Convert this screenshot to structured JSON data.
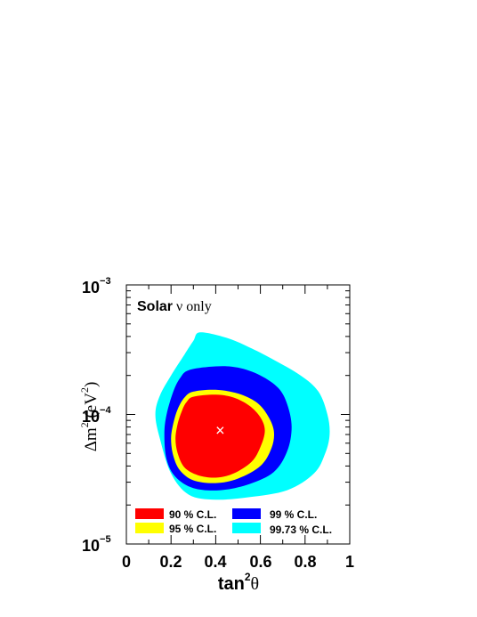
{
  "chart_data": {
    "type": "contour",
    "title": "",
    "annotation": {
      "bold": "Solar",
      "rest": "ν only"
    },
    "xlabel": {
      "base": "tan",
      "sup": "2",
      "tail": "θ"
    },
    "ylabel": {
      "pre": "Δm",
      "sup": "2",
      "mid": " (eV",
      "sup2": "2",
      "tail": ")"
    },
    "x_scale": "linear",
    "xlim": [
      0,
      1
    ],
    "x_ticks": [
      "0",
      "0.2",
      "0.4",
      "0.6",
      "0.8",
      "1"
    ],
    "y_scale": "log",
    "ylim": [
      1e-05,
      0.001
    ],
    "y_ticks": [
      {
        "base": "10",
        "exp": "−5"
      },
      {
        "base": "10",
        "exp": "−4"
      },
      {
        "base": "10",
        "exp": "−3"
      }
    ],
    "best_fit": {
      "x": 0.42,
      "y": 7.5e-05,
      "marker": "×"
    },
    "regions": [
      {
        "label": "99.73 % C.L.",
        "color": "#00ffff",
        "boundary": [
          [
            0.33,
            0.00043
          ],
          [
            0.45,
            0.00039
          ],
          [
            0.55,
            0.00033
          ],
          [
            0.65,
            0.00027
          ],
          [
            0.78,
            0.0002
          ],
          [
            0.86,
            0.00015
          ],
          [
            0.9,
            0.0001
          ],
          [
            0.91,
            7e-05
          ],
          [
            0.89,
            5e-05
          ],
          [
            0.84,
            3.5e-05
          ],
          [
            0.72,
            2.6e-05
          ],
          [
            0.55,
            2.3e-05
          ],
          [
            0.4,
            2.2e-05
          ],
          [
            0.28,
            2.4e-05
          ],
          [
            0.2,
            3.5e-05
          ],
          [
            0.15,
            6.5e-05
          ],
          [
            0.13,
            0.0001
          ],
          [
            0.15,
            0.00014
          ],
          [
            0.2,
            0.0002
          ],
          [
            0.26,
            0.00029
          ],
          [
            0.3,
            0.00037
          ]
        ]
      },
      {
        "label": "99 % C.L.",
        "color": "#0000ff",
        "boundary": [
          [
            0.28,
            0.00022
          ],
          [
            0.4,
            0.000235
          ],
          [
            0.5,
            0.00023
          ],
          [
            0.6,
            0.0002
          ],
          [
            0.68,
            0.00016
          ],
          [
            0.72,
            0.00012
          ],
          [
            0.74,
            8e-05
          ],
          [
            0.72,
            5.2e-05
          ],
          [
            0.66,
            3.6e-05
          ],
          [
            0.55,
            2.9e-05
          ],
          [
            0.42,
            2.6e-05
          ],
          [
            0.3,
            2.7e-05
          ],
          [
            0.22,
            3.3e-05
          ],
          [
            0.18,
            4.5e-05
          ],
          [
            0.17,
            7e-05
          ],
          [
            0.18,
            0.0001
          ],
          [
            0.21,
            0.00015
          ],
          [
            0.24,
            0.00019
          ]
        ]
      },
      {
        "label": "95 % C.L.",
        "color": "#ffff00",
        "boundary": [
          [
            0.3,
            0.00015
          ],
          [
            0.4,
            0.000155
          ],
          [
            0.5,
            0.000145
          ],
          [
            0.58,
            0.000125
          ],
          [
            0.63,
            0.0001
          ],
          [
            0.66,
            7.5e-05
          ],
          [
            0.65,
            5.5e-05
          ],
          [
            0.6,
            4e-05
          ],
          [
            0.5,
            3.2e-05
          ],
          [
            0.4,
            2.95e-05
          ],
          [
            0.3,
            3.1e-05
          ],
          [
            0.24,
            3.7e-05
          ],
          [
            0.21,
            4.8e-05
          ],
          [
            0.2,
            6.5e-05
          ],
          [
            0.21,
            8.5e-05
          ],
          [
            0.23,
            0.00011
          ],
          [
            0.26,
            0.000135
          ]
        ]
      },
      {
        "label": "90 % C.L.",
        "color": "#ff0000",
        "boundary": [
          [
            0.3,
            0.000137
          ],
          [
            0.4,
            0.000142
          ],
          [
            0.48,
            0.000135
          ],
          [
            0.55,
            0.000117
          ],
          [
            0.6,
            9.5e-05
          ],
          [
            0.62,
            7.5e-05
          ],
          [
            0.6,
            5.6e-05
          ],
          [
            0.56,
            4.3e-05
          ],
          [
            0.48,
            3.5e-05
          ],
          [
            0.4,
            3.25e-05
          ],
          [
            0.32,
            3.4e-05
          ],
          [
            0.26,
            3.9e-05
          ],
          [
            0.23,
            5e-05
          ],
          [
            0.22,
            6.5e-05
          ],
          [
            0.23,
            8.5e-05
          ],
          [
            0.25,
            0.000108
          ],
          [
            0.27,
            0.000125
          ]
        ]
      }
    ],
    "legend": [
      {
        "label": "90 % C.L.",
        "color": "#ff0000"
      },
      {
        "label": "99 % C.L.",
        "color": "#0000ff"
      },
      {
        "label": "95 % C.L.",
        "color": "#ffff00"
      },
      {
        "label": "99.73 % C.L.",
        "color": "#00ffff"
      }
    ],
    "legend_position": "bottom"
  }
}
